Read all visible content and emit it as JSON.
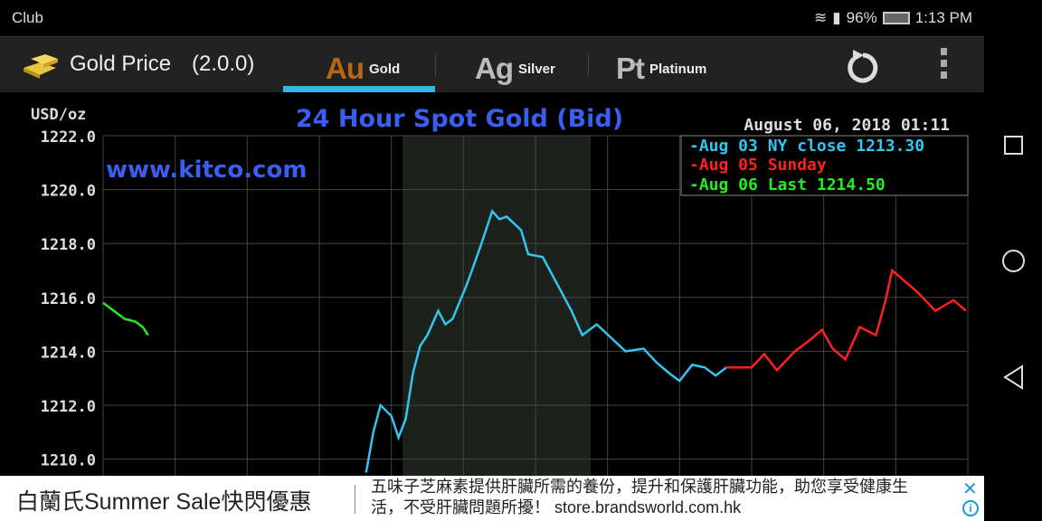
{
  "status_bar": {
    "carrier": "Club",
    "battery": "96%",
    "time": "1:13 PM"
  },
  "app": {
    "title": "Gold Price",
    "version": "(2.0.0)"
  },
  "tabs": [
    {
      "symbol": "Au",
      "label": "Gold",
      "active": true
    },
    {
      "symbol": "Ag",
      "label": "Silver",
      "active": false
    },
    {
      "symbol": "Pt",
      "label": "Platinum",
      "active": false
    }
  ],
  "colors": {
    "accent": "#33b5e5",
    "gold_symbol": "#b8651a",
    "ny_close": "#33c5f0",
    "sunday": "#ff2020",
    "last": "#22ee22"
  },
  "chart_data": {
    "type": "line",
    "title": "24 Hour Spot Gold (Bid)",
    "ylabel": "USD/oz",
    "watermark": "www.kitco.com",
    "timestamp": "August 06, 2018 01:11",
    "ylim": [
      1208.6,
      1222
    ],
    "xlim": [
      0,
      24
    ],
    "y_ticks": [
      "1222.0",
      "1220.0",
      "1218.0",
      "1216.0",
      "1214.0",
      "1212.0",
      "1210.0"
    ],
    "grid": true,
    "legend_position": "top-right",
    "legend": [
      "-Aug 03 NY close 1213.30",
      "-Aug 05 Sunday",
      "-Aug 06 Last 1214.50"
    ],
    "series": [
      {
        "name": "Aug 06 Last",
        "color": "#22ee22",
        "x": [
          0,
          0.3,
          0.6,
          0.9,
          1.1,
          1.25
        ],
        "y": [
          1215.8,
          1215.5,
          1215.2,
          1215.1,
          1214.9,
          1214.6
        ]
      },
      {
        "name": "Aug 03 NY close",
        "color": "#33c5f0",
        "x": [
          7.3,
          7.5,
          7.7,
          8.0,
          8.2,
          8.4,
          8.6,
          8.8,
          9.0,
          9.3,
          9.5,
          9.7,
          10.1,
          10.45,
          10.8,
          11.0,
          11.2,
          11.6,
          11.8,
          12.2,
          12.6,
          13.0,
          13.3,
          13.7,
          14.1,
          14.5,
          15.0,
          15.35,
          15.7,
          16.0,
          16.35,
          16.7,
          17.0,
          17.3
        ],
        "y": [
          1209.5,
          1211.0,
          1212.0,
          1211.6,
          1210.8,
          1211.5,
          1213.2,
          1214.2,
          1214.6,
          1215.5,
          1215.0,
          1215.2,
          1216.5,
          1217.8,
          1219.2,
          1218.9,
          1219.0,
          1218.5,
          1217.6,
          1217.5,
          1216.5,
          1215.5,
          1214.6,
          1215.0,
          1214.5,
          1214.0,
          1214.1,
          1213.6,
          1213.2,
          1212.9,
          1213.5,
          1213.4,
          1213.1,
          1213.4
        ]
      },
      {
        "name": "Aug 05 Sunday",
        "color": "#ff2020",
        "x": [
          17.3,
          18.0,
          18.35,
          18.7,
          19.2,
          19.6,
          19.95,
          20.25,
          20.6,
          21.0,
          21.45,
          21.7,
          21.9,
          22.25,
          22.6,
          23.1,
          23.6,
          23.95
        ],
        "y": [
          1213.4,
          1213.4,
          1213.9,
          1213.3,
          1214.0,
          1214.4,
          1214.8,
          1214.1,
          1213.7,
          1214.9,
          1214.6,
          1215.8,
          1217.0,
          1216.6,
          1216.2,
          1215.5,
          1215.9,
          1215.5
        ]
      }
    ]
  },
  "ad": {
    "headline": "白蘭氏Summer Sale快閃優惠",
    "body": "五味子芝麻素提供肝臟所需的養份，提升和保護肝臟功能，助您享受健康生活，不受肝臟問題所擾！ store.brandsworld.com.hk",
    "close": "✕",
    "info": "i"
  }
}
